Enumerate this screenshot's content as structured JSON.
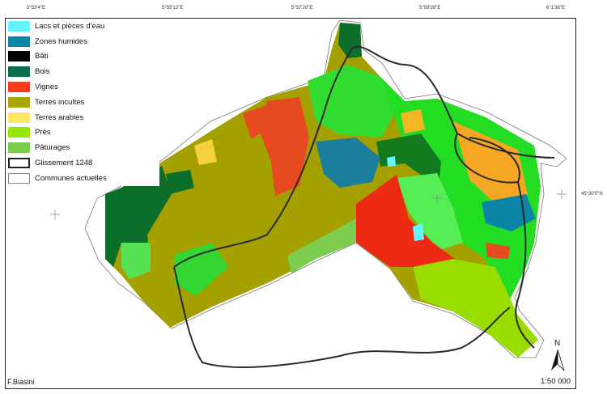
{
  "coordinates": {
    "top": [
      "5°53'4\"E",
      "5°55'12\"E",
      "5°57'20\"E",
      "5°59'28\"E",
      "6°1'36\"E"
    ],
    "right": [
      "45°30'0\"N"
    ]
  },
  "legend": {
    "items": [
      {
        "label": "Lacs et pièces d'eau",
        "color": "#66f5ff",
        "style": "fill"
      },
      {
        "label": "Zones humides",
        "color": "#0a85a5",
        "style": "fill"
      },
      {
        "label": "Bâti",
        "color": "#000000",
        "style": "fill"
      },
      {
        "label": "Bois",
        "color": "#0a6e4a",
        "style": "fill"
      },
      {
        "label": "Vignes",
        "color": "#ff3a1a",
        "style": "fill"
      },
      {
        "label": "Terres incultes",
        "color": "#a8a600",
        "style": "fill"
      },
      {
        "label": "Terres arables",
        "color": "#ffe566",
        "style": "fill"
      },
      {
        "label": "Près",
        "color": "#99e600",
        "style": "fill"
      },
      {
        "label": "Pâturages",
        "color": "#7ccc4e",
        "style": "fill"
      },
      {
        "label": "Glissement 1248",
        "color": "#222222",
        "style": "thick-outline"
      },
      {
        "label": "Communes actuelles",
        "color": "#888888",
        "style": "thin-outline"
      }
    ]
  },
  "credit": "F.Biasini",
  "scale": "1:50 000",
  "north_arrow": {
    "label": "N",
    "icon": "north-arrow-icon"
  }
}
